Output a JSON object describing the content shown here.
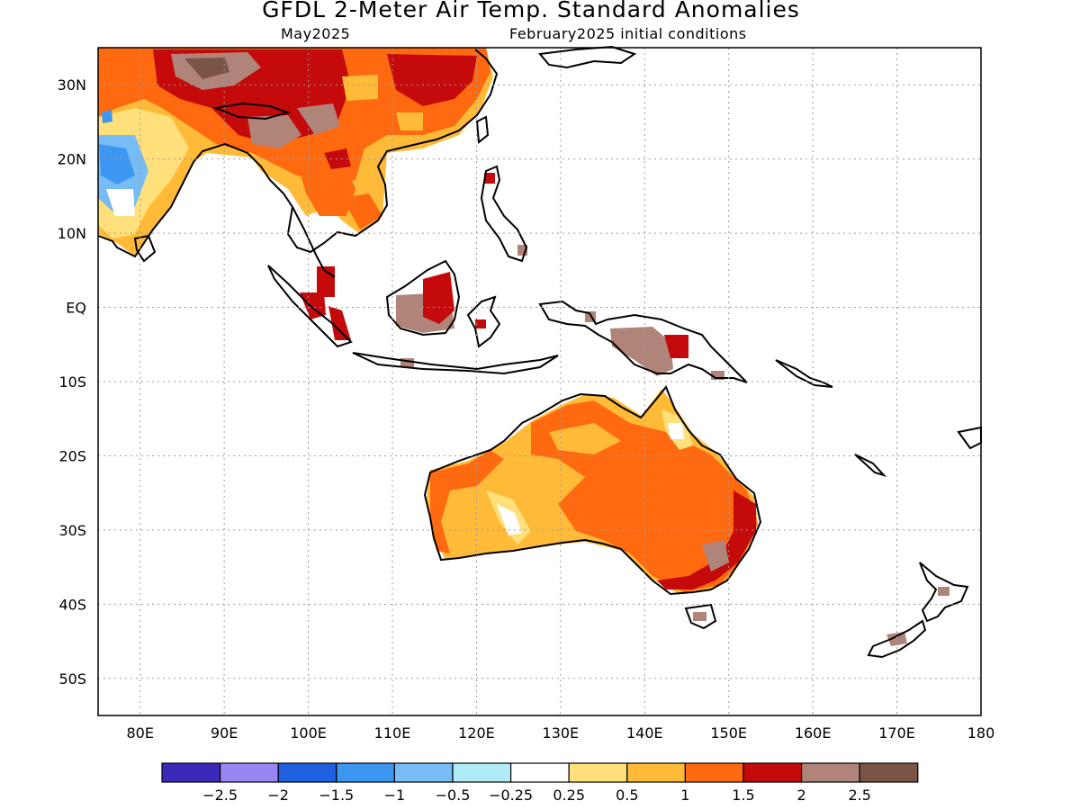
{
  "title": "GFDL 2-Meter Air Temp. Standard Anomalies",
  "subtitle_left": "May2025",
  "subtitle_right": "February2025 initial conditions",
  "axes": {
    "lon_labels": [
      "80E",
      "90E",
      "100E",
      "110E",
      "120E",
      "130E",
      "140E",
      "150E",
      "160E",
      "170E",
      "180"
    ],
    "lat_labels": [
      "30N",
      "20N",
      "10N",
      "EQ",
      "10S",
      "20S",
      "30S",
      "40S",
      "50S"
    ],
    "lon_range": [
      75,
      180
    ],
    "lat_range": [
      -55,
      35
    ],
    "grid": "dotted"
  },
  "legend": {
    "colors": [
      "#3a28b8",
      "#9a86f2",
      "#1f60e0",
      "#3c96f2",
      "#78bcf5",
      "#b0ecf7",
      "#ffffff",
      "#ffe07a",
      "#ffbb38",
      "#ff6a10",
      "#c40a0a",
      "#b08478",
      "#7a5444"
    ],
    "labels": [
      "−2.5",
      "−2",
      "−1.5",
      "−1",
      "−0.5",
      "−0.25",
      "0.25",
      "0.5",
      "1",
      "1.5",
      "2",
      "2.5"
    ]
  }
}
